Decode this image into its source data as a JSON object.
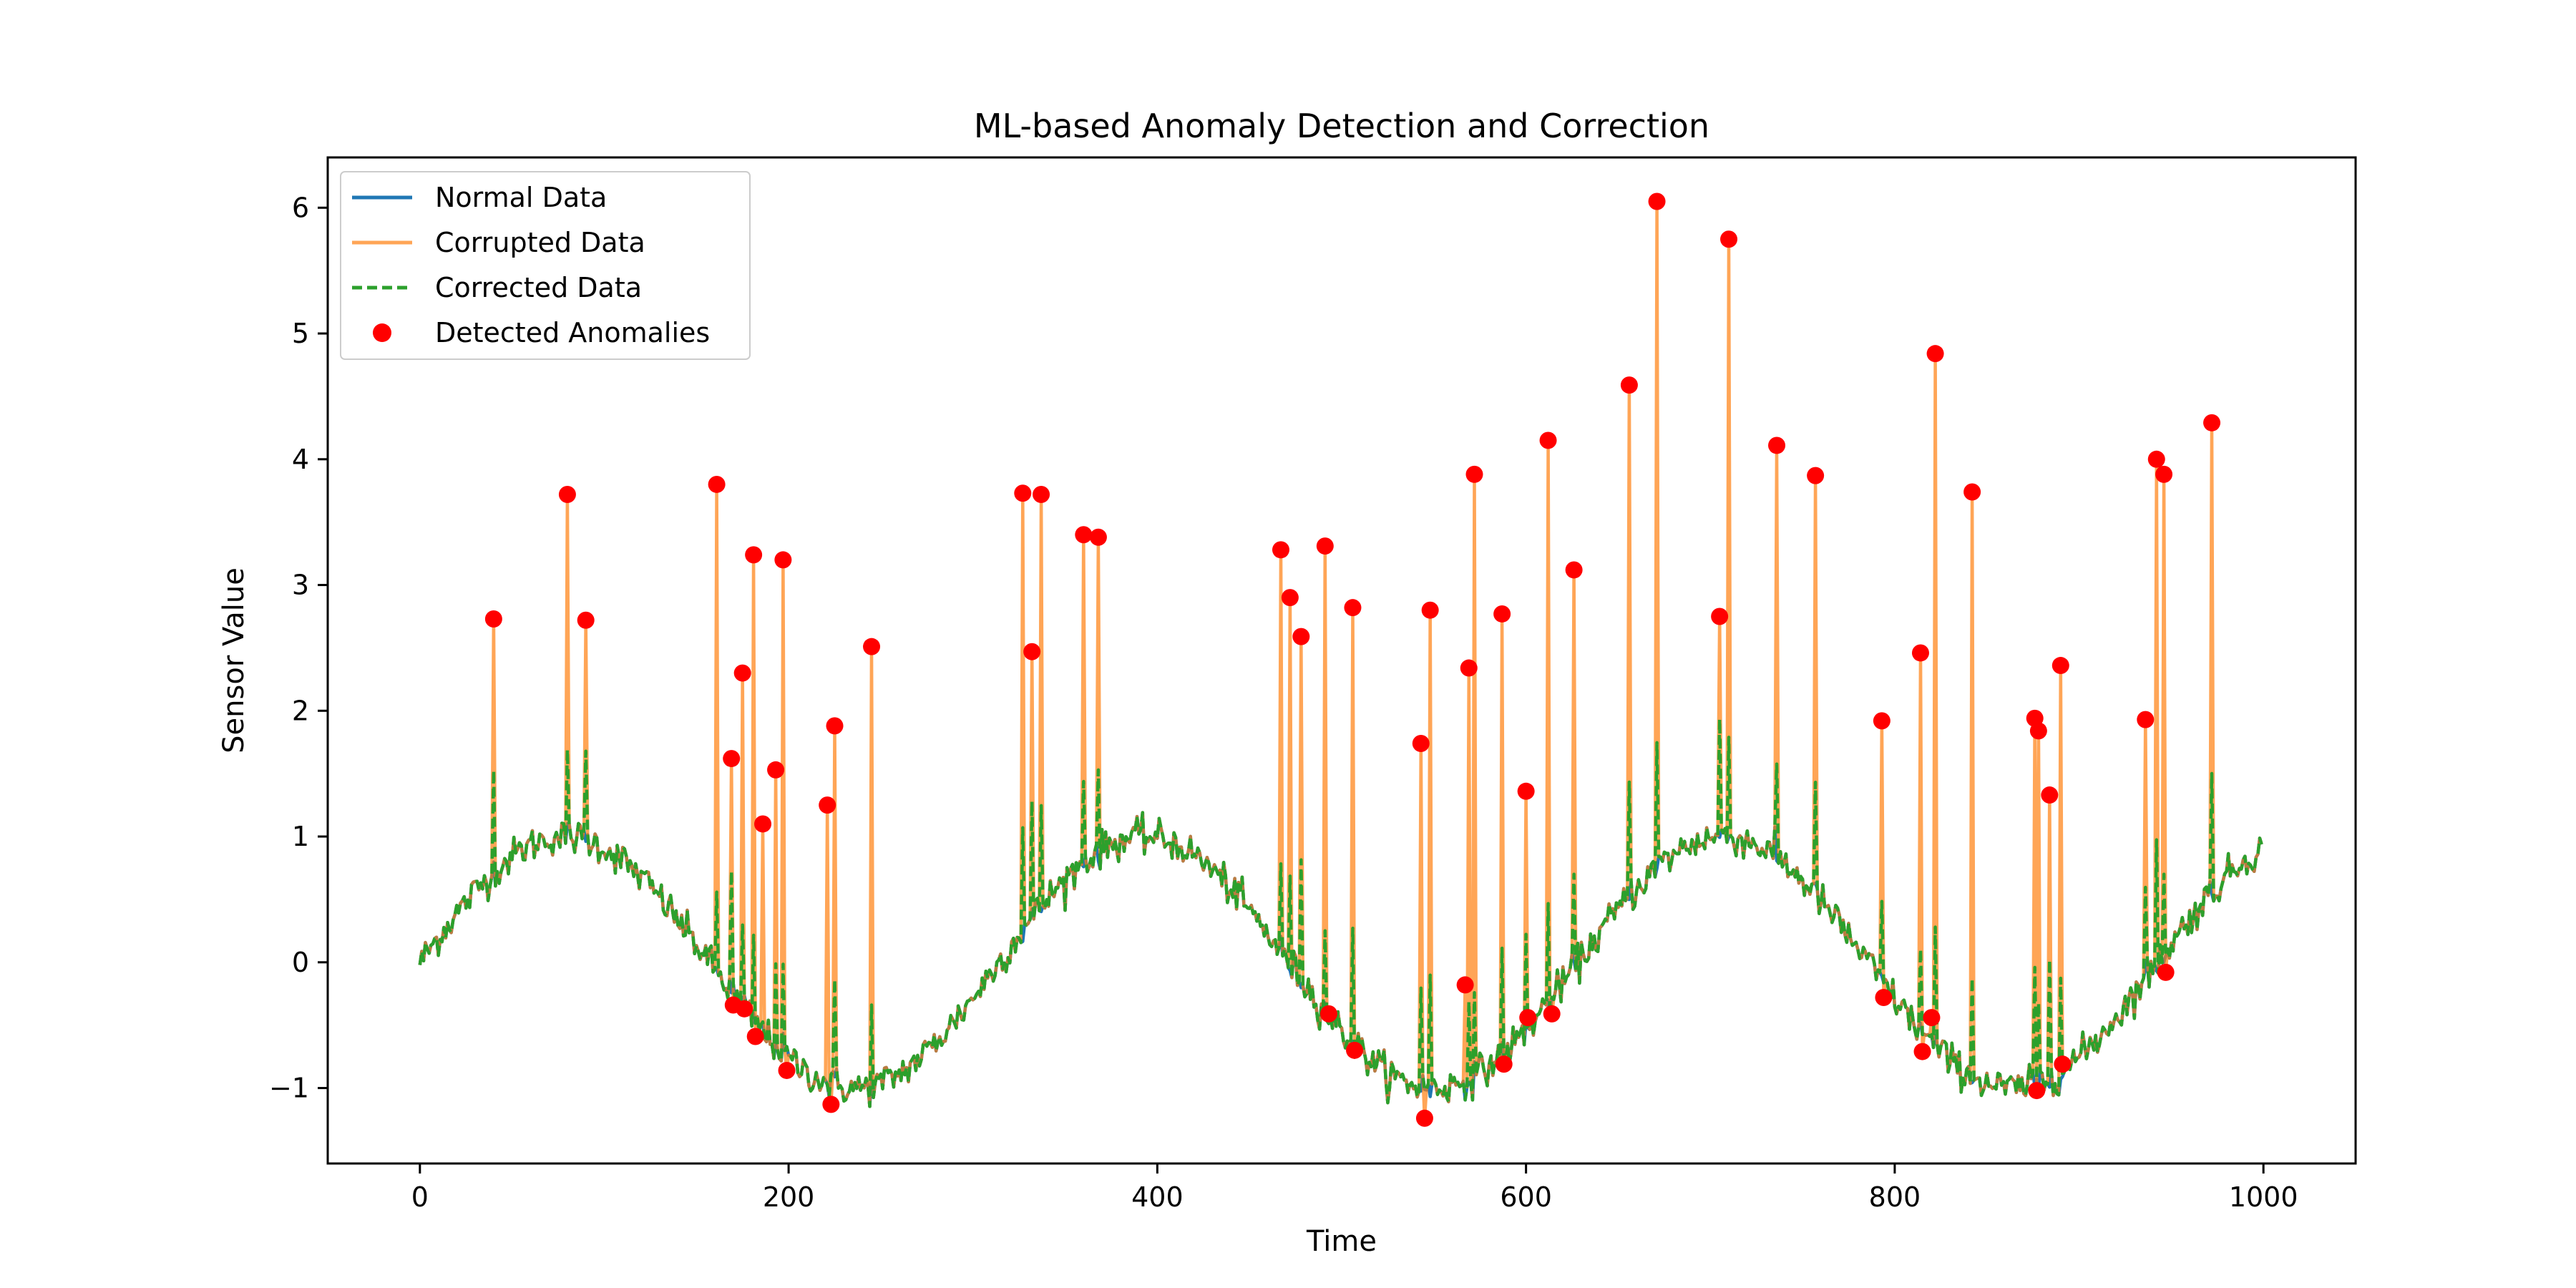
{
  "chart_data": {
    "type": "line",
    "title": "ML-based Anomaly Detection and Correction",
    "xlabel": "Time",
    "ylabel": "Sensor Value",
    "xlim": [
      -50,
      1050
    ],
    "ylim": [
      -1.6,
      6.4
    ],
    "xticks": [
      0,
      200,
      400,
      600,
      800,
      1000
    ],
    "xtick_labels": [
      "0",
      "200",
      "400",
      "600",
      "800",
      "1000"
    ],
    "yticks": [
      -1,
      0,
      1,
      2,
      3,
      4,
      5,
      6
    ],
    "ytick_labels": [
      "−1",
      "0",
      "1",
      "2",
      "3",
      "4",
      "5",
      "6"
    ],
    "grid": false,
    "legend_position": "upper-left",
    "colors": {
      "normal": "#1f77b4",
      "corrupted": "#ff7f0e",
      "corrected": "#2ca02c",
      "anomaly": "#ff0000"
    },
    "series": [
      {
        "name": "Normal Data",
        "style": "solid",
        "description": "sine wave, period about 314 samples, amplitude 1, with small noise (std about 0.07)"
      },
      {
        "name": "Corrupted Data",
        "style": "solid",
        "description": "normal data with spike anomalies at detected points"
      },
      {
        "name": "Corrected Data",
        "style": "dashed",
        "description": "normal data with anomalies replaced by local estimates"
      },
      {
        "name": "Detected Anomalies",
        "style": "scatter"
      }
    ],
    "anomalies": [
      {
        "x": 40,
        "y": 2.73
      },
      {
        "x": 80,
        "y": 3.72
      },
      {
        "x": 90,
        "y": 2.72
      },
      {
        "x": 161,
        "y": 3.8
      },
      {
        "x": 169,
        "y": 1.62
      },
      {
        "x": 170,
        "y": -0.34
      },
      {
        "x": 175,
        "y": 2.3
      },
      {
        "x": 176,
        "y": -0.37
      },
      {
        "x": 181,
        "y": 3.24
      },
      {
        "x": 182,
        "y": -0.59
      },
      {
        "x": 186,
        "y": 1.1
      },
      {
        "x": 193,
        "y": 1.53
      },
      {
        "x": 197,
        "y": 3.2
      },
      {
        "x": 199,
        "y": -0.86
      },
      {
        "x": 221,
        "y": 1.25
      },
      {
        "x": 223,
        "y": -1.13
      },
      {
        "x": 225,
        "y": 1.88
      },
      {
        "x": 245,
        "y": 2.51
      },
      {
        "x": 327,
        "y": 3.73
      },
      {
        "x": 332,
        "y": 2.47
      },
      {
        "x": 337,
        "y": 3.72
      },
      {
        "x": 360,
        "y": 3.4
      },
      {
        "x": 368,
        "y": 3.38
      },
      {
        "x": 467,
        "y": 3.28
      },
      {
        "x": 472,
        "y": 2.9
      },
      {
        "x": 478,
        "y": 2.59
      },
      {
        "x": 491,
        "y": 3.31
      },
      {
        "x": 493,
        "y": -0.41
      },
      {
        "x": 506,
        "y": 2.82
      },
      {
        "x": 507,
        "y": -0.7
      },
      {
        "x": 543,
        "y": 1.74
      },
      {
        "x": 545,
        "y": -1.24
      },
      {
        "x": 548,
        "y": 2.8
      },
      {
        "x": 567,
        "y": -0.18
      },
      {
        "x": 569,
        "y": 2.34
      },
      {
        "x": 572,
        "y": 3.88
      },
      {
        "x": 587,
        "y": 2.77
      },
      {
        "x": 588,
        "y": -0.81
      },
      {
        "x": 600,
        "y": 1.36
      },
      {
        "x": 601,
        "y": -0.44
      },
      {
        "x": 612,
        "y": 4.15
      },
      {
        "x": 614,
        "y": -0.41
      },
      {
        "x": 626,
        "y": 3.12
      },
      {
        "x": 656,
        "y": 4.59
      },
      {
        "x": 671,
        "y": 6.05
      },
      {
        "x": 705,
        "y": 2.75
      },
      {
        "x": 710,
        "y": 5.75
      },
      {
        "x": 736,
        "y": 4.11
      },
      {
        "x": 757,
        "y": 3.87
      },
      {
        "x": 793,
        "y": 1.92
      },
      {
        "x": 794,
        "y": -0.28
      },
      {
        "x": 814,
        "y": 2.46
      },
      {
        "x": 815,
        "y": -0.71
      },
      {
        "x": 820,
        "y": -0.44
      },
      {
        "x": 822,
        "y": 4.84
      },
      {
        "x": 842,
        "y": 3.74
      },
      {
        "x": 876,
        "y": 1.94
      },
      {
        "x": 877,
        "y": -1.02
      },
      {
        "x": 878,
        "y": 1.84
      },
      {
        "x": 884,
        "y": 1.33
      },
      {
        "x": 890,
        "y": 2.36
      },
      {
        "x": 891,
        "y": -0.81
      },
      {
        "x": 936,
        "y": 1.93
      },
      {
        "x": 942,
        "y": 4.0
      },
      {
        "x": 946,
        "y": 3.88
      },
      {
        "x": 947,
        "y": -0.08
      },
      {
        "x": 972,
        "y": 4.29
      }
    ]
  }
}
